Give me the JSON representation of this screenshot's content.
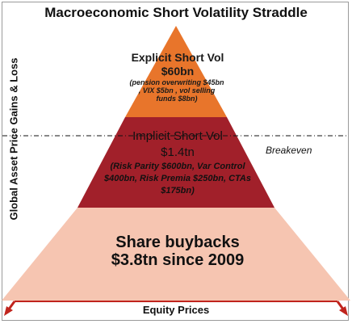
{
  "title": "Macroeconomic Short Volatility Straddle",
  "y_axis_label": "Global Asset Price Gains & Loss",
  "x_axis_label": "Equity Prices",
  "breakeven_label": "Breakeven",
  "tiers": {
    "top": {
      "title": "Explicit Short Vol",
      "value": "$60bn",
      "detail": "(pension overwriting $45bn , VIX $5bn , vol selling funds $8bn)",
      "color": "#e8752b"
    },
    "middle": {
      "title": "Implicit Short Vol",
      "value": "$1.4tn",
      "detail": "(Risk Parity $600bn, Var Control $400bn, Risk Premia $250bn, CTAs $175bn)",
      "color": "#a1202a"
    },
    "bottom": {
      "title": "Share buybacks",
      "value": "$3.8tn since 2009",
      "color": "#f6c5b1"
    }
  },
  "arrow_color": "#c0241d"
}
